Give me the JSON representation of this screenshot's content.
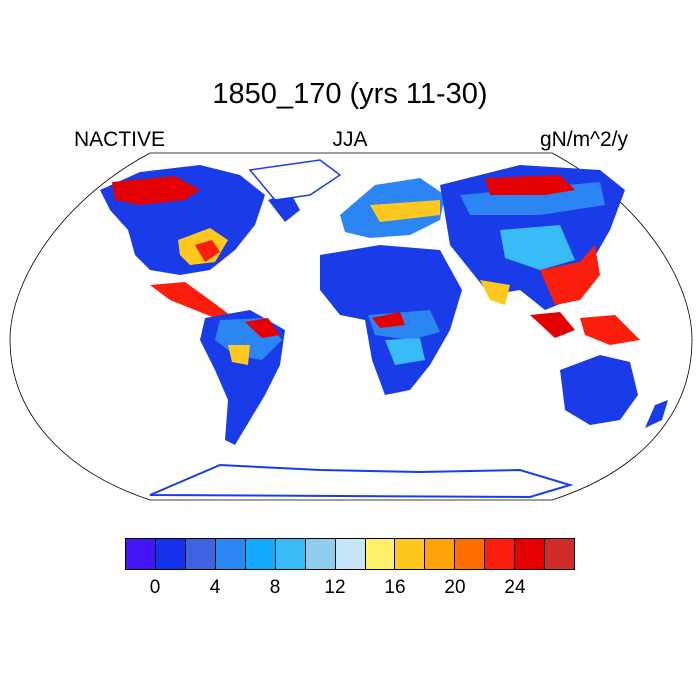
{
  "title": "1850_170 (yrs 11-30)",
  "subtitle_left": "NACTIVE",
  "subtitle_center": "JJA",
  "subtitle_right": "gN/m^2/y",
  "colorbar": {
    "colors": [
      "#4316f5",
      "#1533ec",
      "#3d63e0",
      "#2b86f3",
      "#12a9ff",
      "#38bbf7",
      "#8fcdee",
      "#c6e5f6",
      "#fff26a",
      "#ffc81f",
      "#ffa10a",
      "#ff6d00",
      "#fc1e0c",
      "#e40000",
      "#d02a2a"
    ],
    "tick_labels": [
      "0",
      "4",
      "8",
      "12",
      "16",
      "20",
      "24"
    ]
  },
  "map": {
    "projection": "robinson",
    "ocean_color": "#ffffff",
    "region_colors": {
      "low": "#1a3ce8",
      "mid": "#2b86f3",
      "warm": "#ffc81f",
      "hot": "#e40000"
    }
  }
}
